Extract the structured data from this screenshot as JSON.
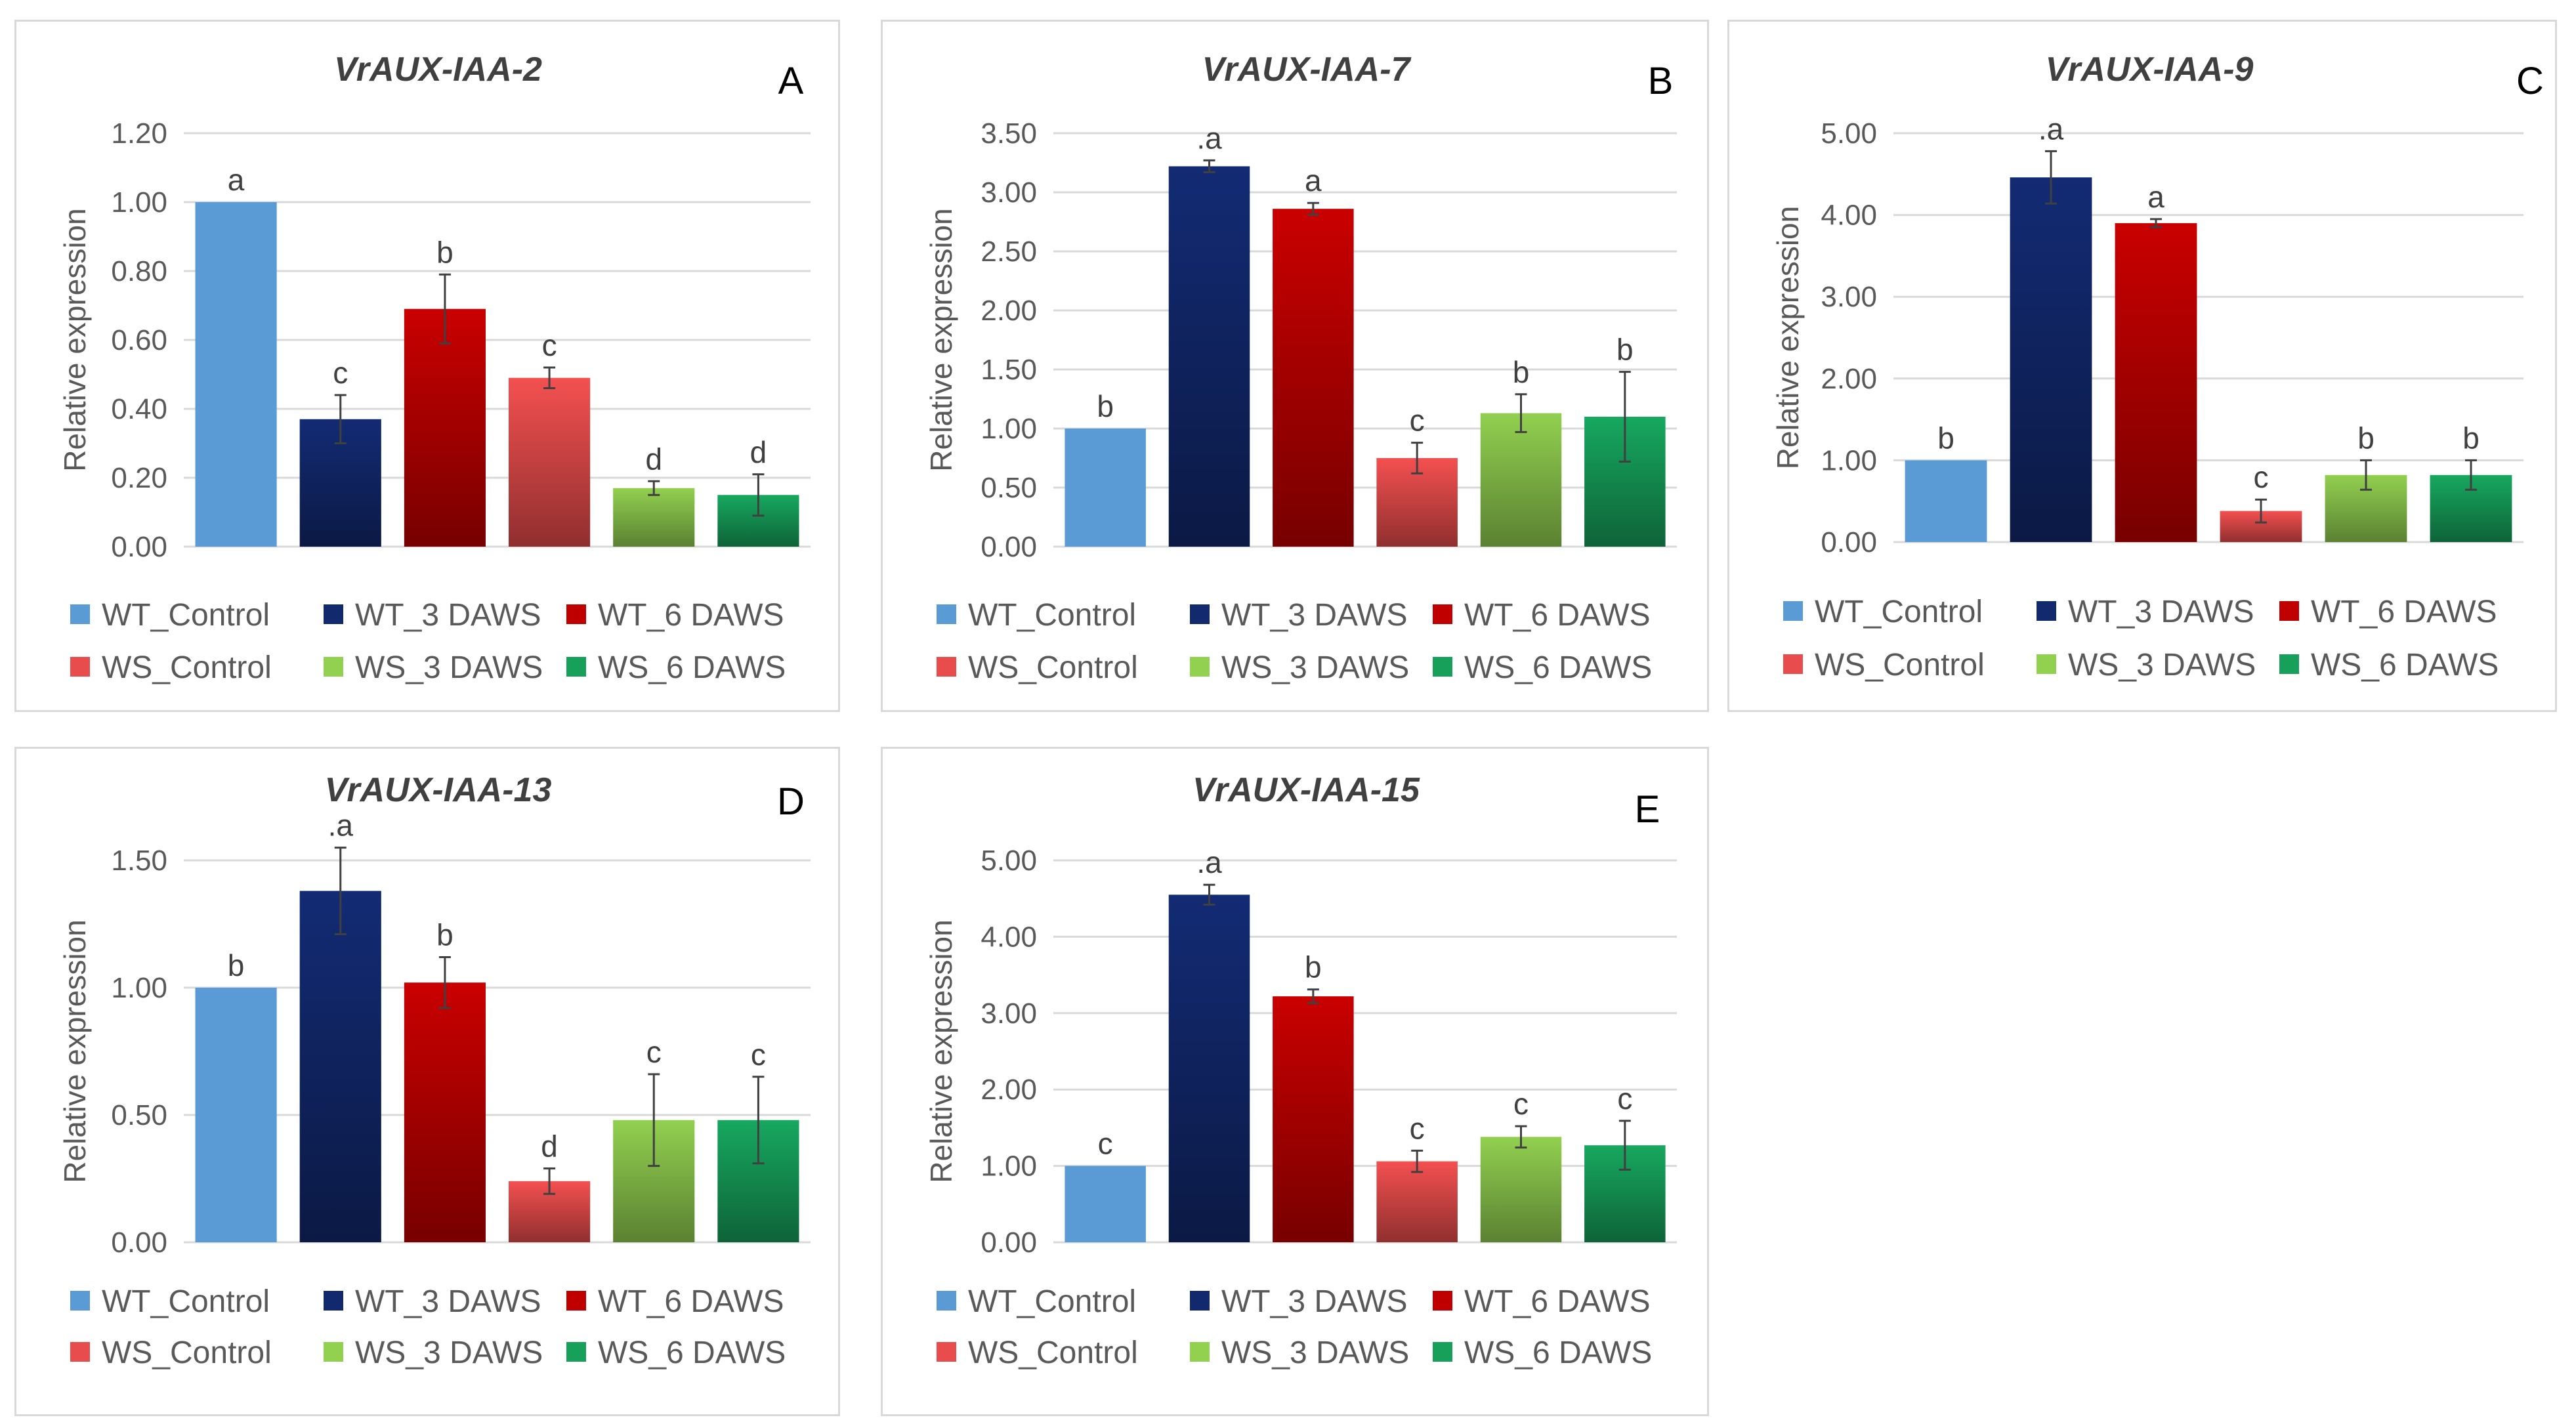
{
  "legend": [
    "WT_Control",
    "WT_3 DAWS",
    "WT_6 DAWS",
    "WS_Control",
    "WS_3 DAWS",
    "WS_6 DAWS"
  ],
  "colors": {
    "WT_Control": "#5b9bd5",
    "WT_3 DAWS": "#12296e",
    "WT_6 DAWS": "#c00000",
    "WS_Control": "#e84c4c",
    "WS_3 DAWS": "#92d050",
    "WS_6 DAWS": "#16a05a"
  },
  "chart_data": [
    {
      "type": "bar",
      "panel": "A",
      "title": "VrAUX-IAA-2",
      "ylabel": "Relative expression",
      "ylim": [
        0,
        1.2
      ],
      "yticks": [
        "0.00",
        "0.20",
        "0.40",
        "0.60",
        "0.80",
        "1.00",
        "1.20"
      ],
      "categories": [
        "WT_Control",
        "WT_3 DAWS",
        "WT_6 DAWS",
        "WS_Control",
        "WS_3 DAWS",
        "WS_6 DAWS"
      ],
      "values": [
        1.0,
        0.37,
        0.69,
        0.49,
        0.17,
        0.15
      ],
      "errors": [
        0.0,
        0.07,
        0.1,
        0.03,
        0.02,
        0.06
      ],
      "letters": [
        "a",
        "c",
        "b",
        "c",
        "d",
        "d"
      ]
    },
    {
      "type": "bar",
      "panel": "B",
      "title": "VrAUX-IAA-7",
      "ylabel": "Relative expression",
      "ylim": [
        0,
        3.5
      ],
      "yticks": [
        "0.00",
        "0.50",
        "1.00",
        "1.50",
        "2.00",
        "2.50",
        "3.00",
        "3.50"
      ],
      "categories": [
        "WT_Control",
        "WT_3 DAWS",
        "WT_6 DAWS",
        "WS_Control",
        "WS_3 DAWS",
        "WS_6 DAWS"
      ],
      "values": [
        1.0,
        3.22,
        2.86,
        0.75,
        1.13,
        1.1
      ],
      "errors": [
        0.0,
        0.05,
        0.05,
        0.13,
        0.16,
        0.38
      ],
      "letters": [
        "b",
        ".a",
        "a",
        "c",
        "b",
        "b"
      ]
    },
    {
      "type": "bar",
      "panel": "C",
      "title": "VrAUX-IAA-9",
      "ylabel": "Relative expression",
      "ylim": [
        0,
        5.0
      ],
      "yticks": [
        "0.00",
        "1.00",
        "2.00",
        "3.00",
        "4.00",
        "5.00"
      ],
      "categories": [
        "WT_Control",
        "WT_3 DAWS",
        "WT_6 DAWS",
        "WS_Control",
        "WS_3 DAWS",
        "WS_6 DAWS"
      ],
      "values": [
        1.0,
        4.46,
        3.9,
        0.38,
        0.82,
        0.82
      ],
      "errors": [
        0.0,
        0.32,
        0.05,
        0.14,
        0.18,
        0.18
      ],
      "letters": [
        "b",
        ".a",
        "a",
        "c",
        "b",
        "b"
      ]
    },
    {
      "type": "bar",
      "panel": "D",
      "title": "VrAUX-IAA-13",
      "ylabel": "Relative expression",
      "ylim": [
        0,
        1.5
      ],
      "yticks": [
        "0.00",
        "0.50",
        "1.00",
        "1.50"
      ],
      "categories": [
        "WT_Control",
        "WT_3 DAWS",
        "WT_6 DAWS",
        "WS_Control",
        "WS_3 DAWS",
        "WS_6 DAWS"
      ],
      "values": [
        1.0,
        1.38,
        1.02,
        0.24,
        0.48,
        0.48
      ],
      "errors": [
        0.0,
        0.17,
        0.1,
        0.05,
        0.18,
        0.17
      ],
      "letters": [
        "b",
        ".a",
        "b",
        "d",
        "c",
        "c"
      ]
    },
    {
      "type": "bar",
      "panel": "E",
      "title": "VrAUX-IAA-15",
      "ylabel": "Relative expression",
      "ylim": [
        0,
        5.0
      ],
      "yticks": [
        "0.00",
        "1.00",
        "2.00",
        "3.00",
        "4.00",
        "5.00"
      ],
      "categories": [
        "WT_Control",
        "WT_3 DAWS",
        "WT_6 DAWS",
        "WS_Control",
        "WS_3 DAWS",
        "WS_6 DAWS"
      ],
      "values": [
        1.0,
        4.55,
        3.22,
        1.06,
        1.38,
        1.27
      ],
      "errors": [
        0.0,
        0.13,
        0.09,
        0.14,
        0.14,
        0.32
      ],
      "letters": [
        "c",
        ".a",
        "b",
        "c",
        "c",
        "c"
      ]
    }
  ]
}
